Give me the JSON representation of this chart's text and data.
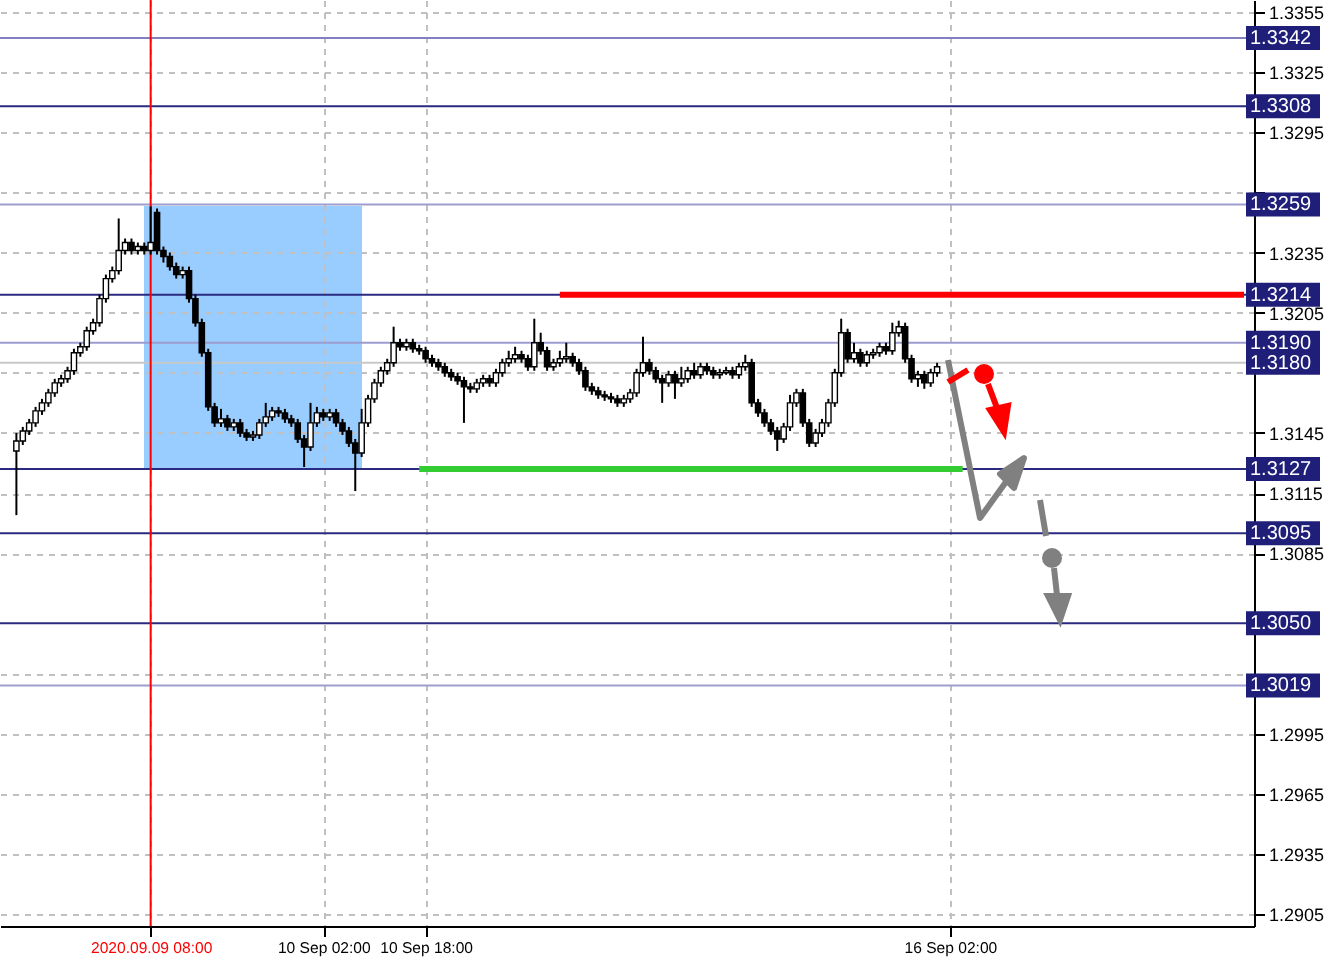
{
  "chart_data": {
    "type": "candlestick",
    "color": "#000000",
    "categories": [
      null,
      null,
      null,
      null,
      null,
      null,
      null,
      null,
      null,
      null,
      null,
      null,
      null,
      null,
      null,
      null,
      null,
      null,
      null,
      null,
      null,
      "2020.09.09 08:00",
      null,
      null,
      null,
      null,
      null,
      null,
      null,
      null,
      null,
      null,
      null,
      null,
      null,
      null,
      null,
      null,
      null,
      null,
      null,
      null,
      null,
      null,
      null,
      null,
      null,
      null,
      "10 Sep 02:00",
      null,
      null,
      null,
      null,
      null,
      null,
      null,
      null,
      null,
      null,
      null,
      null,
      null,
      null,
      null,
      "10 Sep 18:00",
      null,
      null,
      null,
      null,
      null,
      null,
      null,
      null,
      null,
      null,
      null,
      null,
      null,
      null,
      null,
      null,
      null,
      null,
      null,
      null,
      null,
      null,
      null,
      null,
      null,
      null,
      null,
      null,
      null,
      null,
      null,
      null,
      null,
      null,
      null,
      null,
      null,
      null,
      null,
      null,
      null,
      null,
      null,
      null,
      null,
      null,
      null,
      null,
      null,
      null,
      null,
      null,
      null,
      null,
      null,
      null,
      null,
      null,
      null,
      null,
      null,
      null,
      null,
      null,
      null,
      null,
      null,
      null,
      null,
      null,
      null,
      null,
      null,
      null,
      null,
      null,
      null,
      null,
      null,
      null,
      null,
      "16 Sep 02:00",
      null,
      null,
      null,
      null,
      null,
      null,
      null,
      null,
      null,
      null,
      null,
      null,
      null,
      null,
      null,
      null,
      null,
      null,
      null,
      null,
      null,
      null,
      null,
      null,
      null,
      null,
      null,
      null,
      null,
      null,
      null,
      null,
      null,
      null,
      null,
      null,
      null,
      null,
      null,
      null,
      null,
      null,
      null,
      null,
      null,
      null
    ],
    "ohlc": [
      [
        1.3136,
        1.3145,
        1.3104,
        1.3141
      ],
      [
        1.3141,
        1.3148,
        1.3139,
        1.3146
      ],
      [
        1.3146,
        1.3152,
        1.3144,
        1.315
      ],
      [
        1.315,
        1.3158,
        1.3148,
        1.3156
      ],
      [
        1.3156,
        1.3162,
        1.3154,
        1.316
      ],
      [
        1.316,
        1.3167,
        1.3158,
        1.3165
      ],
      [
        1.3165,
        1.3172,
        1.3163,
        1.317
      ],
      [
        1.317,
        1.3174,
        1.3168,
        1.3172
      ],
      [
        1.3172,
        1.3178,
        1.317,
        1.3176
      ],
      [
        1.3176,
        1.3187,
        1.3174,
        1.3185
      ],
      [
        1.3185,
        1.319,
        1.3183,
        1.3188
      ],
      [
        1.3188,
        1.3198,
        1.3186,
        1.3196
      ],
      [
        1.3196,
        1.3202,
        1.3194,
        1.32
      ],
      [
        1.32,
        1.3214,
        1.3198,
        1.3212
      ],
      [
        1.3212,
        1.3224,
        1.321,
        1.3222
      ],
      [
        1.3222,
        1.3228,
        1.322,
        1.3226
      ],
      [
        1.3226,
        1.3252,
        1.3224,
        1.3236
      ],
      [
        1.3236,
        1.3242,
        1.3234,
        1.324
      ],
      [
        1.324,
        1.3242,
        1.3234,
        1.3236
      ],
      [
        1.3236,
        1.324,
        1.3234,
        1.3238
      ],
      [
        1.3238,
        1.324,
        1.3234,
        1.3236
      ],
      [
        1.3236,
        1.3258,
        1.3234,
        1.324
      ],
      [
        1.3255,
        1.3257,
        1.3234,
        1.3236
      ],
      [
        1.3236,
        1.3238,
        1.323,
        1.3233
      ],
      [
        1.3233,
        1.3235,
        1.3226,
        1.3228
      ],
      [
        1.3228,
        1.323,
        1.3222,
        1.3224
      ],
      [
        1.3224,
        1.3228,
        1.3222,
        1.3226
      ],
      [
        1.3226,
        1.3228,
        1.321,
        1.3212
      ],
      [
        1.3212,
        1.3214,
        1.3198,
        1.32
      ],
      [
        1.32,
        1.3202,
        1.3183,
        1.3185
      ],
      [
        1.3185,
        1.3187,
        1.3156,
        1.3158
      ],
      [
        1.3158,
        1.316,
        1.3148,
        1.315
      ],
      [
        1.315,
        1.3157,
        1.3148,
        1.3152
      ],
      [
        1.3152,
        1.3154,
        1.3146,
        1.3148
      ],
      [
        1.3148,
        1.3152,
        1.3146,
        1.315
      ],
      [
        1.315,
        1.3152,
        1.3143,
        1.3145
      ],
      [
        1.3145,
        1.3147,
        1.3141,
        1.3143
      ],
      [
        1.3143,
        1.3146,
        1.3141,
        1.3144
      ],
      [
        1.3144,
        1.3152,
        1.3142,
        1.315
      ],
      [
        1.315,
        1.316,
        1.3148,
        1.3153
      ],
      [
        1.3153,
        1.3158,
        1.3151,
        1.3156
      ],
      [
        1.3156,
        1.3158,
        1.3153,
        1.3155
      ],
      [
        1.3155,
        1.3157,
        1.315,
        1.3152
      ],
      [
        1.3152,
        1.3154,
        1.3148,
        1.315
      ],
      [
        1.315,
        1.3152,
        1.314,
        1.3142
      ],
      [
        1.3142,
        1.3144,
        1.3128,
        1.3138
      ],
      [
        1.3138,
        1.316,
        1.3136,
        1.315
      ],
      [
        1.315,
        1.3158,
        1.3148,
        1.3155
      ],
      [
        1.3155,
        1.3157,
        1.3151,
        1.3153
      ],
      [
        1.3153,
        1.3157,
        1.3151,
        1.3155
      ],
      [
        1.3155,
        1.3157,
        1.3148,
        1.315
      ],
      [
        1.315,
        1.3152,
        1.3144,
        1.3146
      ],
      [
        1.3146,
        1.3148,
        1.3138,
        1.314
      ],
      [
        1.314,
        1.3142,
        1.3116,
        1.3135
      ],
      [
        1.3135,
        1.3157,
        1.3133,
        1.315
      ],
      [
        1.315,
        1.3164,
        1.3148,
        1.3162
      ],
      [
        1.3162,
        1.3172,
        1.316,
        1.317
      ],
      [
        1.317,
        1.3178,
        1.3168,
        1.3176
      ],
      [
        1.3176,
        1.3182,
        1.3174,
        1.318
      ],
      [
        1.318,
        1.3198,
        1.3178,
        1.319
      ],
      [
        1.319,
        1.3192,
        1.3186,
        1.3188
      ],
      [
        1.3188,
        1.3192,
        1.3186,
        1.319
      ],
      [
        1.319,
        1.3192,
        1.3185,
        1.3187
      ],
      [
        1.3187,
        1.3189,
        1.3184,
        1.3186
      ],
      [
        1.3186,
        1.3188,
        1.318,
        1.3182
      ],
      [
        1.3182,
        1.3184,
        1.3178,
        1.318
      ],
      [
        1.318,
        1.3182,
        1.3176,
        1.3178
      ],
      [
        1.3178,
        1.318,
        1.3173,
        1.3175
      ],
      [
        1.3175,
        1.3177,
        1.3171,
        1.3173
      ],
      [
        1.3173,
        1.3175,
        1.3169,
        1.3171
      ],
      [
        1.3171,
        1.3173,
        1.315,
        1.3168
      ],
      [
        1.3168,
        1.317,
        1.3165,
        1.3167
      ],
      [
        1.3167,
        1.3172,
        1.3165,
        1.317
      ],
      [
        1.317,
        1.3174,
        1.3168,
        1.3172
      ],
      [
        1.3172,
        1.3174,
        1.3168,
        1.317
      ],
      [
        1.317,
        1.3177,
        1.3168,
        1.3175
      ],
      [
        1.3175,
        1.3182,
        1.3173,
        1.318
      ],
      [
        1.318,
        1.3186,
        1.3178,
        1.3182
      ],
      [
        1.3182,
        1.3188,
        1.318,
        1.3184
      ],
      [
        1.3184,
        1.3186,
        1.318,
        1.3182
      ],
      [
        1.3182,
        1.3184,
        1.3176,
        1.3178
      ],
      [
        1.3178,
        1.3202,
        1.3176,
        1.319
      ],
      [
        1.319,
        1.3195,
        1.3184,
        1.3186
      ],
      [
        1.3186,
        1.3188,
        1.3176,
        1.3178
      ],
      [
        1.3178,
        1.3182,
        1.3176,
        1.318
      ],
      [
        1.318,
        1.3186,
        1.3178,
        1.3182
      ],
      [
        1.3182,
        1.319,
        1.318,
        1.3183
      ],
      [
        1.3183,
        1.3185,
        1.3178,
        1.318
      ],
      [
        1.318,
        1.3182,
        1.3174,
        1.3176
      ],
      [
        1.3176,
        1.3178,
        1.3166,
        1.3168
      ],
      [
        1.3168,
        1.317,
        1.3164,
        1.3166
      ],
      [
        1.3166,
        1.3168,
        1.3162,
        1.3164
      ],
      [
        1.3164,
        1.3166,
        1.3161,
        1.3163
      ],
      [
        1.3163,
        1.3165,
        1.316,
        1.3162
      ],
      [
        1.3162,
        1.3164,
        1.3158,
        1.316
      ],
      [
        1.316,
        1.3164,
        1.3158,
        1.3162
      ],
      [
        1.3162,
        1.3167,
        1.316,
        1.3165
      ],
      [
        1.3165,
        1.3177,
        1.3163,
        1.3175
      ],
      [
        1.3175,
        1.3193,
        1.3173,
        1.318
      ],
      [
        1.318,
        1.3182,
        1.3174,
        1.3176
      ],
      [
        1.3176,
        1.3178,
        1.317,
        1.3172
      ],
      [
        1.3172,
        1.3174,
        1.316,
        1.317
      ],
      [
        1.317,
        1.3176,
        1.3168,
        1.3174
      ],
      [
        1.3174,
        1.3176,
        1.3162,
        1.317
      ],
      [
        1.317,
        1.3178,
        1.3168,
        1.3172
      ],
      [
        1.3172,
        1.3178,
        1.317,
        1.3176
      ],
      [
        1.3176,
        1.318,
        1.3172,
        1.3174
      ],
      [
        1.3174,
        1.318,
        1.3172,
        1.3178
      ],
      [
        1.3178,
        1.318,
        1.3174,
        1.3176
      ],
      [
        1.3176,
        1.3178,
        1.3172,
        1.3174
      ],
      [
        1.3174,
        1.3177,
        1.3172,
        1.3175
      ],
      [
        1.3175,
        1.3178,
        1.3174,
        1.3176
      ],
      [
        1.3176,
        1.3178,
        1.3172,
        1.3174
      ],
      [
        1.3174,
        1.318,
        1.3172,
        1.3178
      ],
      [
        1.3178,
        1.3184,
        1.3176,
        1.318
      ],
      [
        1.318,
        1.3182,
        1.3158,
        1.316
      ],
      [
        1.316,
        1.3162,
        1.3153,
        1.3155
      ],
      [
        1.3155,
        1.3157,
        1.3148,
        1.315
      ],
      [
        1.315,
        1.3152,
        1.3144,
        1.3146
      ],
      [
        1.3146,
        1.3148,
        1.3136,
        1.3142
      ],
      [
        1.3142,
        1.315,
        1.314,
        1.3148
      ],
      [
        1.3148,
        1.3164,
        1.3146,
        1.316
      ],
      [
        1.316,
        1.3167,
        1.3158,
        1.3165
      ],
      [
        1.3165,
        1.3167,
        1.3148,
        1.315
      ],
      [
        1.315,
        1.3152,
        1.3138,
        1.314
      ],
      [
        1.314,
        1.3147,
        1.3138,
        1.3145
      ],
      [
        1.3145,
        1.3152,
        1.3143,
        1.315
      ],
      [
        1.315,
        1.3162,
        1.3148,
        1.316
      ],
      [
        1.316,
        1.3177,
        1.3158,
        1.3175
      ],
      [
        1.3175,
        1.3202,
        1.3173,
        1.3195
      ],
      [
        1.3195,
        1.3197,
        1.318,
        1.3182
      ],
      [
        1.3182,
        1.319,
        1.318,
        1.3185
      ],
      [
        1.3185,
        1.3187,
        1.3178,
        1.318
      ],
      [
        1.318,
        1.3186,
        1.3178,
        1.3184
      ],
      [
        1.3184,
        1.3187,
        1.3182,
        1.3185
      ],
      [
        1.3185,
        1.319,
        1.3183,
        1.3188
      ],
      [
        1.3188,
        1.319,
        1.3184,
        1.3186
      ],
      [
        1.3186,
        1.32,
        1.3184,
        1.3195
      ],
      [
        1.3195,
        1.3201,
        1.3193,
        1.3198
      ],
      [
        1.3198,
        1.32,
        1.318,
        1.3182
      ],
      [
        1.3182,
        1.3184,
        1.317,
        1.3172
      ],
      [
        1.3172,
        1.3176,
        1.3168,
        1.3174
      ],
      [
        1.3174,
        1.3176,
        1.3167,
        1.317
      ],
      [
        1.317,
        1.3177,
        1.3168,
        1.3175
      ],
      [
        1.3175,
        1.318,
        1.3173,
        1.3178
      ],
      null,
      null,
      null,
      null,
      null,
      null,
      null,
      null,
      null,
      null,
      null,
      null,
      null,
      null,
      null,
      null,
      null,
      null,
      null,
      null,
      null,
      null,
      null,
      null,
      null,
      null,
      null,
      null,
      null,
      null,
      null,
      null,
      null,
      null,
      null,
      null,
      null,
      null,
      null,
      null,
      null,
      null,
      null,
      null,
      null,
      null,
      null,
      null
    ],
    "series": [
      {
        "type": "line",
        "color": "#ff0000",
        "values": [
          null,
          null,
          null,
          null,
          null,
          null,
          null,
          null,
          null,
          null,
          null,
          null,
          null,
          null,
          null,
          null,
          null,
          null,
          null,
          null,
          null,
          null,
          null,
          null,
          null,
          null,
          null,
          null,
          null,
          null,
          null,
          null,
          null,
          null,
          null,
          null,
          null,
          null,
          null,
          null,
          null,
          null,
          null,
          null,
          null,
          null,
          null,
          null,
          null,
          null,
          null,
          null,
          null,
          null,
          null,
          null,
          null,
          null,
          null,
          null,
          null,
          null,
          null,
          null,
          null,
          null,
          null,
          null,
          null,
          null,
          null,
          null,
          null,
          null,
          null,
          null,
          null,
          null,
          null,
          null,
          null,
          null,
          null,
          null,
          null,
          1.3214,
          1.3214,
          1.3214,
          1.3214,
          1.3214,
          1.3214,
          1.3214,
          1.3214,
          1.3214,
          1.3214,
          1.3214,
          1.3214,
          1.3214,
          1.3214,
          1.3214,
          1.3214,
          1.3214,
          1.3214,
          1.3214,
          1.3214,
          1.3214,
          1.3214,
          1.3214,
          1.3214,
          1.3214,
          1.3214,
          1.3214,
          1.3214,
          1.3214,
          1.3214,
          1.3214,
          1.3214,
          1.3214,
          1.3214,
          1.3214,
          1.3214,
          1.3214,
          1.3214,
          1.3214,
          1.3214,
          1.3214,
          1.3214,
          1.3214,
          1.3214,
          1.3214,
          1.3214,
          1.3214,
          1.3214,
          1.3214,
          1.3214,
          1.3214,
          1.3214,
          1.3214,
          1.3214,
          1.3214,
          1.3214,
          1.3214,
          1.3214,
          1.3214,
          1.3214,
          1.3214,
          1.3214,
          1.3214,
          1.3214,
          1.3214,
          1.3214,
          1.3214,
          1.3214,
          1.3214,
          1.3214,
          1.3214,
          1.3214,
          1.3214,
          1.3214,
          1.3214,
          1.3214,
          1.3214,
          1.3214,
          1.3214,
          1.3214,
          1.3214,
          1.3214,
          1.3214,
          1.3214,
          1.3214,
          1.3214,
          1.3214,
          1.3214,
          1.3214,
          1.3214,
          1.3214,
          1.3214,
          1.3214,
          1.3214,
          1.3214,
          1.3214,
          1.3214,
          1.3214,
          1.3214,
          1.3214,
          1.3214,
          1.3214,
          1.3214,
          1.3214,
          1.3214,
          1.3214,
          1.3214,
          1.3214
        ]
      },
      {
        "type": "line",
        "color": "#33cc33",
        "values": [
          null,
          null,
          null,
          null,
          null,
          null,
          null,
          null,
          null,
          null,
          null,
          null,
          null,
          null,
          null,
          null,
          null,
          null,
          null,
          null,
          null,
          null,
          null,
          null,
          null,
          null,
          null,
          null,
          null,
          null,
          null,
          null,
          null,
          null,
          null,
          null,
          null,
          null,
          null,
          null,
          null,
          null,
          null,
          null,
          null,
          null,
          null,
          null,
          null,
          null,
          null,
          null,
          null,
          null,
          null,
          null,
          null,
          null,
          null,
          null,
          null,
          null,
          null,
          1.3127,
          1.3127,
          1.3127,
          1.3127,
          1.3127,
          1.3127,
          1.3127,
          1.3127,
          1.3127,
          1.3127,
          1.3127,
          1.3127,
          1.3127,
          1.3127,
          1.3127,
          1.3127,
          1.3127,
          1.3127,
          1.3127,
          1.3127,
          1.3127,
          1.3127,
          1.3127,
          1.3127,
          1.3127,
          1.3127,
          1.3127,
          1.3127,
          1.3127,
          1.3127,
          1.3127,
          1.3127,
          1.3127,
          1.3127,
          1.3127,
          1.3127,
          1.3127,
          1.3127,
          1.3127,
          1.3127,
          1.3127,
          1.3127,
          1.3127,
          1.3127,
          1.3127,
          1.3127,
          1.3127,
          1.3127,
          1.3127,
          1.3127,
          1.3127,
          1.3127,
          1.3127,
          1.3127,
          1.3127,
          1.3127,
          1.3127,
          1.3127,
          1.3127,
          1.3127,
          1.3127,
          1.3127,
          1.3127,
          1.3127,
          1.3127,
          1.3127,
          1.3127,
          1.3127,
          1.3127,
          1.3127,
          1.3127,
          1.3127,
          1.3127,
          1.3127,
          1.3127,
          1.3127,
          1.3127,
          1.3127,
          1.3127,
          1.3127,
          1.3127,
          1.3127,
          1.3127,
          1.3127,
          1.3127,
          1.3127,
          null,
          null,
          null,
          null,
          null,
          null,
          null,
          null,
          null,
          null,
          null,
          null,
          null,
          null,
          null,
          null,
          null,
          null,
          null,
          null,
          null,
          null,
          null,
          null,
          null,
          null,
          null,
          null,
          null,
          null,
          null,
          null,
          null,
          null,
          null,
          null,
          null,
          null,
          null,
          null,
          null,
          null,
          null,
          null
        ]
      }
    ],
    "ylim": [
      1.2899,
      1.3361
    ],
    "yticks": [
      1.2905,
      1.2935,
      1.2965,
      1.2995,
      {
        "value": 1.3025,
        "label": null
      },
      1.3085,
      1.3115,
      1.3145,
      {
        "value": 1.3175,
        "label": null
      },
      1.3205,
      1.3235,
      {
        "value": 1.3265,
        "label": null
      },
      1.3295,
      1.3325,
      1.3355
    ],
    "grid": true,
    "ref_lines": [
      {
        "axis": "y",
        "value": 1.3342,
        "label": "1.3342",
        "color": "#8080c0"
      },
      {
        "axis": "y",
        "value": 1.3308,
        "label": "1.3308",
        "color": "#2a2a80"
      },
      {
        "axis": "y",
        "value": 1.3259,
        "label": "1.3259",
        "color": "#9d9dd0"
      },
      {
        "axis": "y",
        "value": 1.3214,
        "label": "1.3214",
        "color": "#2a2a80"
      },
      {
        "axis": "y",
        "value": 1.319,
        "label": "1.3190",
        "color": "#9d9dd0"
      },
      {
        "axis": "y",
        "value": 1.318,
        "label": "1.3180",
        "color": "#c8c8c8"
      },
      {
        "axis": "y",
        "value": 1.3127,
        "label": "1.3127",
        "color": "#2a2a80"
      },
      {
        "axis": "y",
        "value": 1.3095,
        "label": "1.3095",
        "color": "#2a2a80"
      },
      {
        "axis": "y",
        "value": 1.305,
        "label": "1.3050",
        "color": "#2a2a80"
      },
      {
        "axis": "y",
        "value": 1.3019,
        "label": "1.3019",
        "color": "#9d9dd0"
      },
      {
        "axis": "x",
        "value": "2020.09.09 08:00",
        "color": "#ff0000"
      }
    ]
  }
}
